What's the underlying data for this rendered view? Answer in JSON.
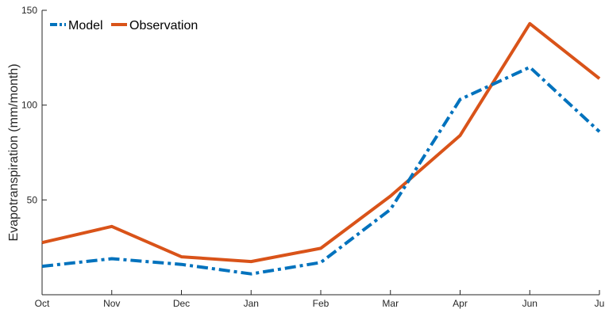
{
  "chart_data": {
    "type": "line",
    "title": "",
    "xlabel": "",
    "ylabel": "Evapotranspiration (mm/month)",
    "categories": [
      "Oct",
      "Nov",
      "Dec",
      "Jan",
      "Feb",
      "Mar",
      "Apr",
      "Jun",
      "Ju"
    ],
    "ylim": [
      0,
      150
    ],
    "yticks": [
      50,
      100,
      150
    ],
    "grid": false,
    "legend_position": "top-left",
    "series": [
      {
        "name": "Model",
        "style": "dash-dot",
        "color": "#0072BD",
        "values": [
          15,
          19,
          16,
          11,
          17,
          45,
          103,
          120,
          86
        ]
      },
      {
        "name": "Observation",
        "style": "solid",
        "color": "#D95319",
        "values": [
          27.5,
          36,
          20,
          17.5,
          24.5,
          52,
          84,
          143,
          114
        ]
      }
    ]
  }
}
